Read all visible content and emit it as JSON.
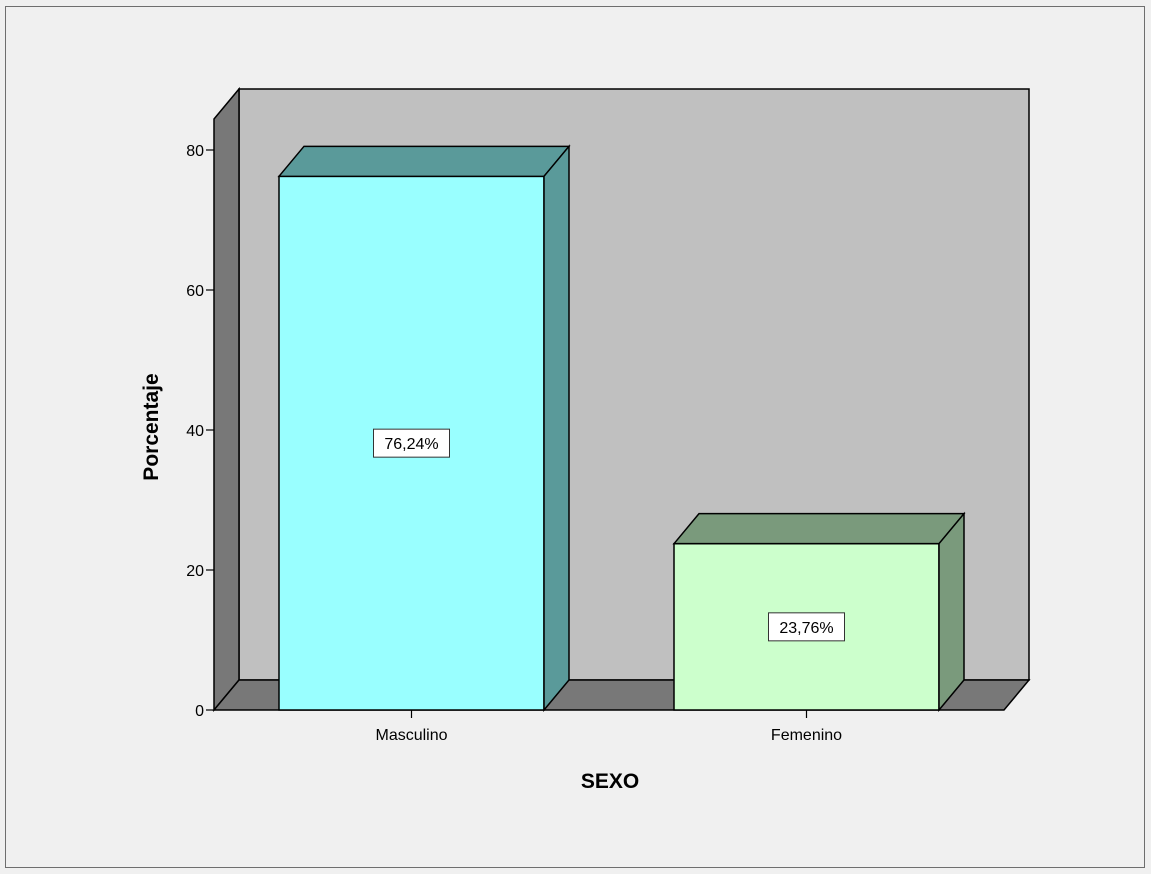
{
  "chart_data": {
    "type": "bar",
    "categories": [
      "Masculino",
      "Femenino"
    ],
    "values": [
      76.24,
      23.76
    ],
    "data_labels": [
      "76,24%",
      "23,76%"
    ],
    "xlabel": "SEXO",
    "ylabel": "Porcentaje",
    "ylim": [
      0,
      80
    ],
    "yticks": [
      0,
      20,
      40,
      60,
      80
    ],
    "grid": false,
    "legend": "none",
    "three_d": true,
    "colors": {
      "bars": [
        {
          "front": "#99ffff",
          "side": "#5a9a9a"
        },
        {
          "front": "#ccffcc",
          "side": "#7a9a7c"
        }
      ],
      "back_wall": "#c0c0c0",
      "side_wall": "#787878",
      "floor": "#787878",
      "background": "#f0f0f0"
    }
  }
}
